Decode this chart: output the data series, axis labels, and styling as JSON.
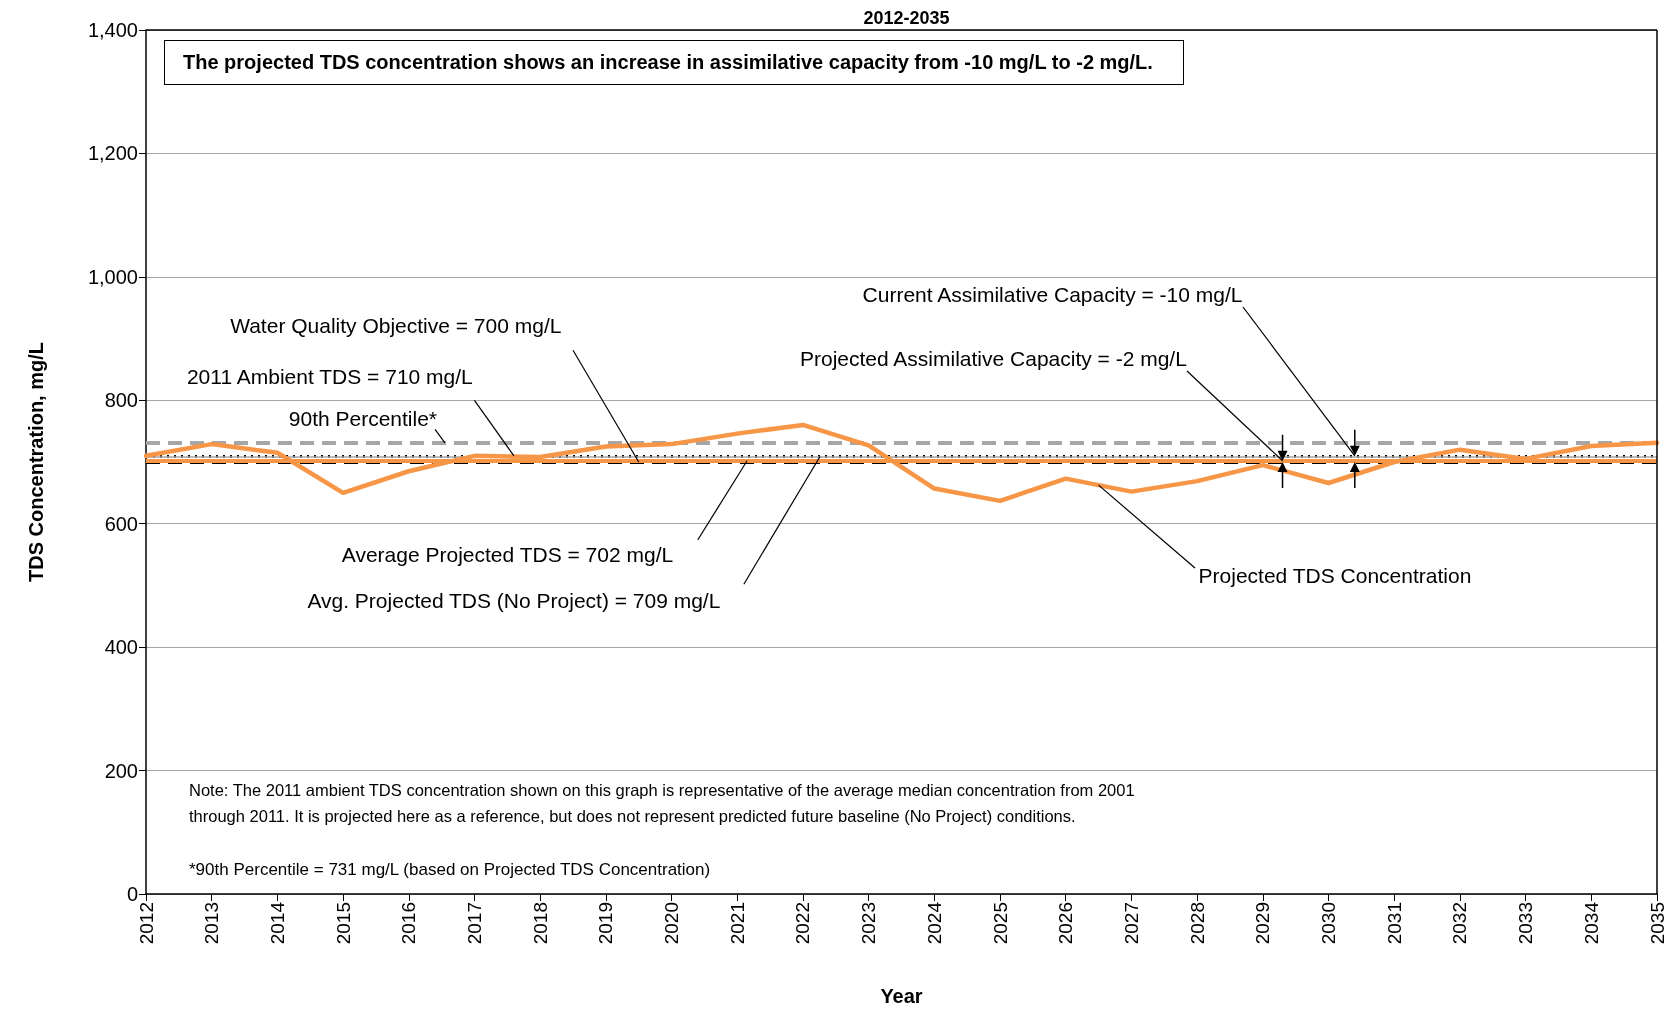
{
  "chart_data": {
    "type": "line",
    "title": "2012-2035",
    "xlabel": "Year",
    "ylabel": "TDS Concentration, mg/L",
    "x": [
      2012,
      2013,
      2014,
      2015,
      2016,
      2017,
      2018,
      2019,
      2020,
      2021,
      2022,
      2023,
      2024,
      2025,
      2026,
      2027,
      2028,
      2029,
      2030,
      2031,
      2032,
      2033,
      2034,
      2035
    ],
    "series": [
      {
        "name": "Projected TDS Concentration",
        "color": "#f79646",
        "values": [
          710,
          729,
          715,
          650,
          685,
          710,
          708,
          725,
          729,
          746,
          760,
          727,
          657,
          637,
          673,
          652,
          669,
          695,
          666,
          700,
          720,
          705,
          726,
          731
        ]
      }
    ],
    "xlim": [
      2012,
      2035
    ],
    "xticks": [
      2012,
      2013,
      2014,
      2015,
      2016,
      2017,
      2018,
      2019,
      2020,
      2021,
      2022,
      2023,
      2024,
      2025,
      2026,
      2027,
      2028,
      2029,
      2030,
      2031,
      2032,
      2033,
      2034,
      2035
    ],
    "ylim": [
      0,
      1400
    ],
    "yticks": [
      {
        "value": 0,
        "label": "0"
      },
      {
        "value": 200,
        "label": "200"
      },
      {
        "value": 400,
        "label": "400"
      },
      {
        "value": 600,
        "label": "600"
      },
      {
        "value": 800,
        "label": "800"
      },
      {
        "value": 1000,
        "label": "1,000"
      },
      {
        "value": 1200,
        "label": "1,200"
      },
      {
        "value": 1400,
        "label": "1,400"
      }
    ],
    "grid": "y",
    "legend": false,
    "marker": "none",
    "ref_lines": [
      {
        "axis": "y",
        "value": 700,
        "label": "Water Quality Objective = 700 mg/L",
        "color": "#000000",
        "line_style": "dashed"
      },
      {
        "axis": "y",
        "value": 710,
        "label": "2011 Ambient TDS = 710 mg/L",
        "color": "#000000",
        "line_style": "dotted"
      },
      {
        "axis": "y",
        "value": 731,
        "label": "90th Percentile*",
        "color": "#a6a6a6",
        "line_style": "dashed"
      },
      {
        "axis": "y",
        "value": 702,
        "label": "Average Projected TDS = 702 mg/L",
        "color": "#f79646",
        "line_style": "solid"
      },
      {
        "axis": "y",
        "value": 709,
        "label": "Avg. Projected TDS (No Project) = 709 mg/L",
        "color": "#a6a6a6",
        "line_style": "solid"
      }
    ],
    "annotations": [
      "The projected TDS concentration shows an increase in assimilative capacity from -10 mg/L to -2 mg/L.",
      {
        "text": "Current Assimilative Capacity = -10 mg/L",
        "x": 2030.4,
        "y": 710
      },
      {
        "text": "Projected Assimilative Capacity = -2 mg/L",
        "x": 2029.3,
        "y": 702
      },
      "Note: The 2011 ambient TDS concentration shown on this graph is representative of the average median concentration from 2001 through 2011.  It is projected here as a reference, but does not represent predicted future baseline (No Project) conditions.",
      "*90th Percentile = 731 mg/L (based on Projected TDS Concentration)"
    ]
  }
}
